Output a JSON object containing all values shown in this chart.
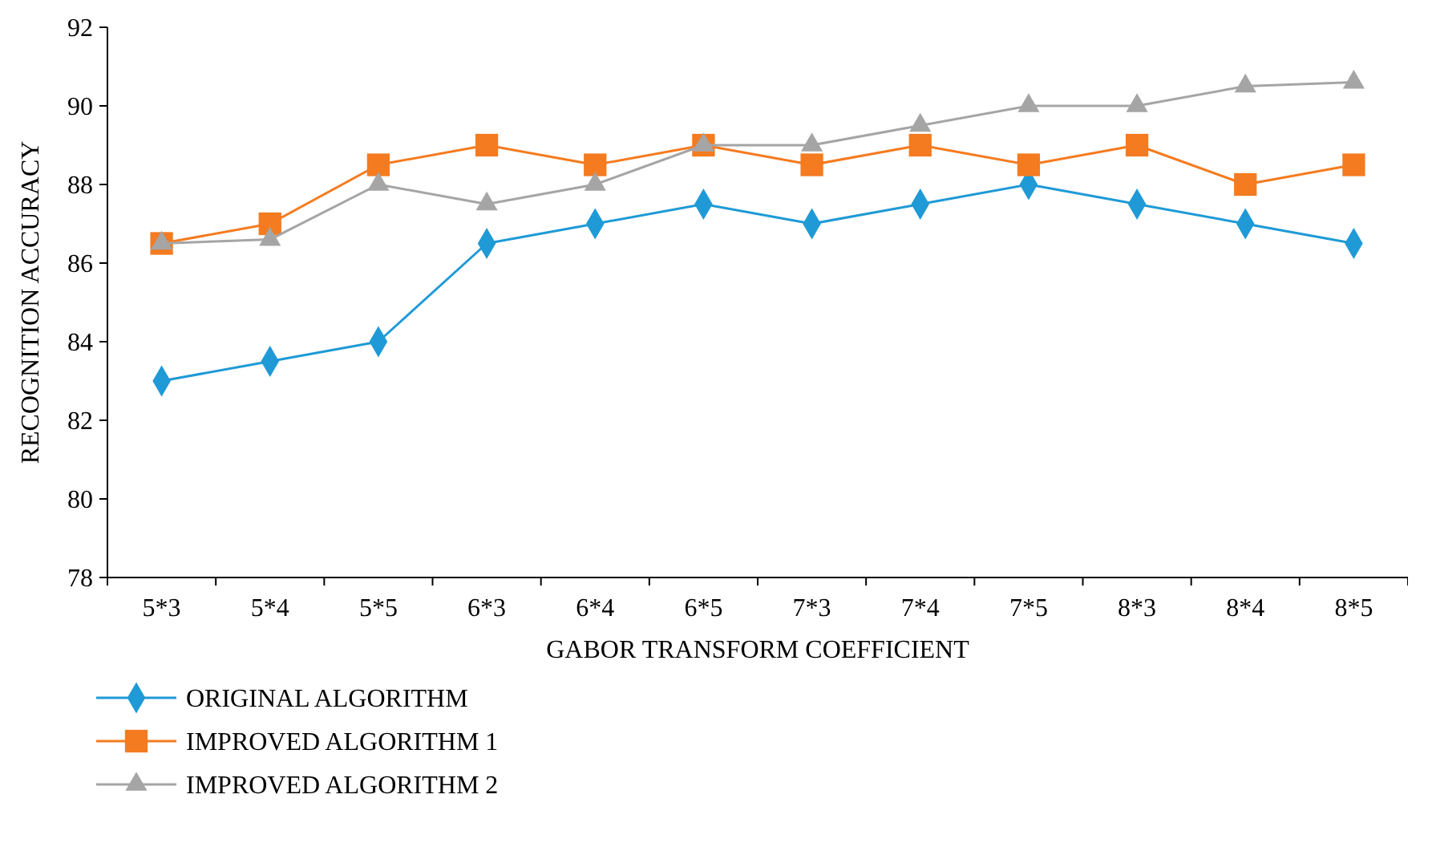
{
  "chart_data": {
    "type": "line",
    "xlabel": "GABOR TRANSFORM COEFFICIENT",
    "ylabel": "RECOGNITION ACCURACY",
    "categories": [
      "5*3",
      "5*4",
      "5*5",
      "6*3",
      "6*4",
      "6*5",
      "7*3",
      "7*4",
      "7*5",
      "8*3",
      "8*4",
      "8*5"
    ],
    "ylim": [
      78,
      92
    ],
    "yticks": [
      78,
      80,
      82,
      84,
      86,
      88,
      90,
      92
    ],
    "grid": false,
    "legend": "bottom left",
    "series": [
      {
        "name": "ORIGINAL ALGORITHM",
        "color": "#1f9ad6",
        "marker": "diamond",
        "values": [
          83,
          83.5,
          84,
          86.5,
          87,
          87.5,
          87,
          87.5,
          88,
          87.5,
          87,
          86.5
        ]
      },
      {
        "name": "IMPROVED ALGORITHM 1",
        "color": "#f47b20",
        "marker": "square",
        "values": [
          86.5,
          87,
          88.5,
          89,
          88.5,
          89,
          88.5,
          89,
          88.5,
          89,
          88,
          88.5
        ]
      },
      {
        "name": "IMPROVED ALGORITHM 2",
        "color": "#a5a5a5",
        "marker": "triangle",
        "values": [
          86.5,
          86.6,
          88,
          87.5,
          88,
          89,
          89,
          89.5,
          90,
          90,
          90.5,
          90.6
        ]
      }
    ]
  }
}
